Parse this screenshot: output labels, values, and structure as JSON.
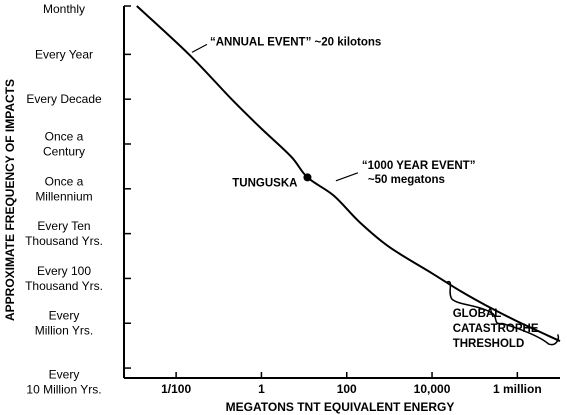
{
  "chart_data": {
    "type": "line",
    "xlabel": "MEGATONS TNT EQUIVALENT ENERGY",
    "ylabel": "APPROXIMATE FREQUENCY OF IMPACTS",
    "x_scale": "log",
    "y_scale": "log",
    "x_ticks": [
      {
        "value": 0.01,
        "label": "1/100"
      },
      {
        "value": 1,
        "label": "1"
      },
      {
        "value": 100,
        "label": "100"
      },
      {
        "value": 10000,
        "label": "10,000"
      },
      {
        "value": 1000000,
        "label": "1 million"
      }
    ],
    "y_ticks": [
      {
        "value": 12,
        "lines": [
          "Monthly"
        ]
      },
      {
        "value": 1,
        "lines": [
          "Every Year"
        ]
      },
      {
        "value": 0.1,
        "lines": [
          "Every Decade"
        ]
      },
      {
        "value": 0.01,
        "lines": [
          "Once a",
          "Century"
        ]
      },
      {
        "value": 0.001,
        "lines": [
          "Once a",
          "Millennium"
        ]
      },
      {
        "value": 0.0001,
        "lines": [
          "Every Ten",
          "Thousand Yrs."
        ]
      },
      {
        "value": 1e-05,
        "lines": [
          "Every 100",
          "Thousand Yrs."
        ]
      },
      {
        "value": 1e-06,
        "lines": [
          "Every",
          "Million Yrs."
        ]
      },
      {
        "value": 1e-07,
        "lines": [
          "Every",
          "10 Million Yrs."
        ]
      }
    ],
    "series": [
      {
        "x": [
          0.0012,
          0.02,
          0.2,
          1,
          5,
          12,
          50,
          200,
          1000,
          10000,
          50000,
          200000,
          1000000,
          10000000
        ],
        "y": [
          12,
          1,
          0.1,
          0.022,
          0.0052,
          0.0018,
          0.0007,
          0.00018,
          5e-05,
          1.3e-05,
          5e-06,
          2.4e-06,
          1.1e-06,
          4e-07
        ]
      }
    ],
    "points": [
      {
        "label": "TUNGUSKA",
        "x": 12,
        "y": 0.0018
      }
    ],
    "annotations": [
      {
        "lines": [
          "“ANNUAL EVENT” ~20 kilotons"
        ],
        "x": 0.02,
        "y": 1
      },
      {
        "lines": [
          "“1000 YEAR EVENT”",
          "~50 megatons"
        ],
        "x": 50,
        "y": 0.001
      },
      {
        "lines": [
          "GLOBAL",
          "CATASTROPHE",
          "THRESHOLD"
        ],
        "x": 100000,
        "y": 1e-06
      }
    ],
    "threshold_region": {
      "x_range": [
        20000,
        10000000
      ],
      "y_range": [
        3e-07,
        1e-05
      ]
    },
    "xlim": [
      0.0006,
      10000000
    ],
    "ylim": [
      6e-08,
      12
    ],
    "grid": false,
    "legend": "none"
  }
}
